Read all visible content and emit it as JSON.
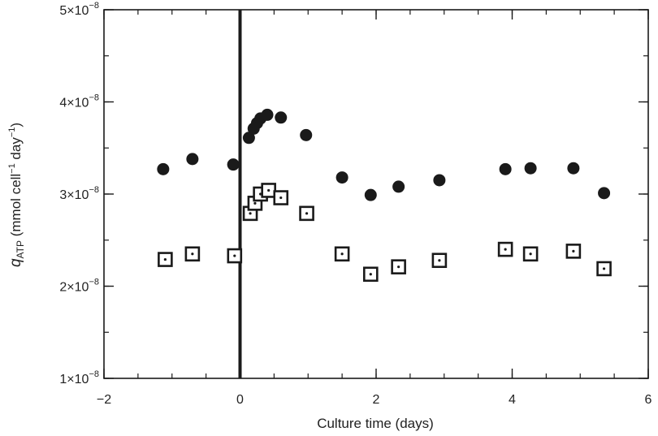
{
  "chart_data": {
    "type": "scatter",
    "title": "",
    "xlabel": "Culture time (days)",
    "ylabel": {
      "symbol": "q",
      "subscript": "ATP",
      "units_open": " (mmol cell",
      "exp1": "−1",
      "units_mid": " day",
      "exp2": "−1",
      "units_close": ")"
    },
    "xlim": [
      -2,
      6
    ],
    "ylim": [
      1e-08,
      5e-08
    ],
    "x_ticks": [
      {
        "value": -2,
        "label": "−2"
      },
      {
        "value": 0,
        "label": "0"
      },
      {
        "value": 2,
        "label": "2"
      },
      {
        "value": 4,
        "label": "4"
      },
      {
        "value": 6,
        "label": "6"
      }
    ],
    "y_ticks": [
      {
        "value": 1e-08,
        "mantissa": "1×10",
        "exp": "−8"
      },
      {
        "value": 2e-08,
        "mantissa": "2×10",
        "exp": "−8"
      },
      {
        "value": 3e-08,
        "mantissa": "3×10",
        "exp": "−8"
      },
      {
        "value": 4e-08,
        "mantissa": "4×10",
        "exp": "−8"
      },
      {
        "value": 5e-08,
        "mantissa": "5×10",
        "exp": "−8"
      }
    ],
    "x_minor_step": 0.5,
    "y_minor_step": 5e-09,
    "vertical_line_x": 0,
    "grid": false,
    "legend": "none",
    "series": [
      {
        "marker": "filled-circle",
        "points": [
          {
            "x": -1.13,
            "y": 3.27e-08
          },
          {
            "x": -0.7,
            "y": 3.38e-08
          },
          {
            "x": -0.1,
            "y": 3.32e-08
          },
          {
            "x": 0.13,
            "y": 3.61e-08
          },
          {
            "x": 0.2,
            "y": 3.71e-08
          },
          {
            "x": 0.25,
            "y": 3.77e-08
          },
          {
            "x": 0.3,
            "y": 3.82e-08
          },
          {
            "x": 0.4,
            "y": 3.86e-08
          },
          {
            "x": 0.6,
            "y": 3.83e-08
          },
          {
            "x": 0.97,
            "y": 3.64e-08
          },
          {
            "x": 1.5,
            "y": 3.18e-08
          },
          {
            "x": 1.92,
            "y": 2.99e-08
          },
          {
            "x": 2.33,
            "y": 3.08e-08
          },
          {
            "x": 2.93,
            "y": 3.15e-08
          },
          {
            "x": 3.9,
            "y": 3.27e-08
          },
          {
            "x": 4.27,
            "y": 3.28e-08
          },
          {
            "x": 4.9,
            "y": 3.28e-08
          },
          {
            "x": 5.35,
            "y": 3.01e-08
          }
        ]
      },
      {
        "marker": "dotted-square",
        "points": [
          {
            "x": -1.1,
            "y": 2.29e-08
          },
          {
            "x": -0.7,
            "y": 2.35e-08
          },
          {
            "x": -0.08,
            "y": 2.33e-08
          },
          {
            "x": 0.15,
            "y": 2.79e-08
          },
          {
            "x": 0.22,
            "y": 2.9e-08
          },
          {
            "x": 0.3,
            "y": 3e-08
          },
          {
            "x": 0.42,
            "y": 3.04e-08
          },
          {
            "x": 0.6,
            "y": 2.96e-08
          },
          {
            "x": 0.98,
            "y": 2.79e-08
          },
          {
            "x": 1.5,
            "y": 2.35e-08
          },
          {
            "x": 1.92,
            "y": 2.13e-08
          },
          {
            "x": 2.33,
            "y": 2.21e-08
          },
          {
            "x": 2.93,
            "y": 2.28e-08
          },
          {
            "x": 3.9,
            "y": 2.4e-08
          },
          {
            "x": 4.27,
            "y": 2.35e-08
          },
          {
            "x": 4.9,
            "y": 2.38e-08
          },
          {
            "x": 5.35,
            "y": 2.19e-08
          }
        ]
      }
    ]
  },
  "colors": {
    "ink": "#1a1a1a",
    "background": "#ffffff"
  }
}
